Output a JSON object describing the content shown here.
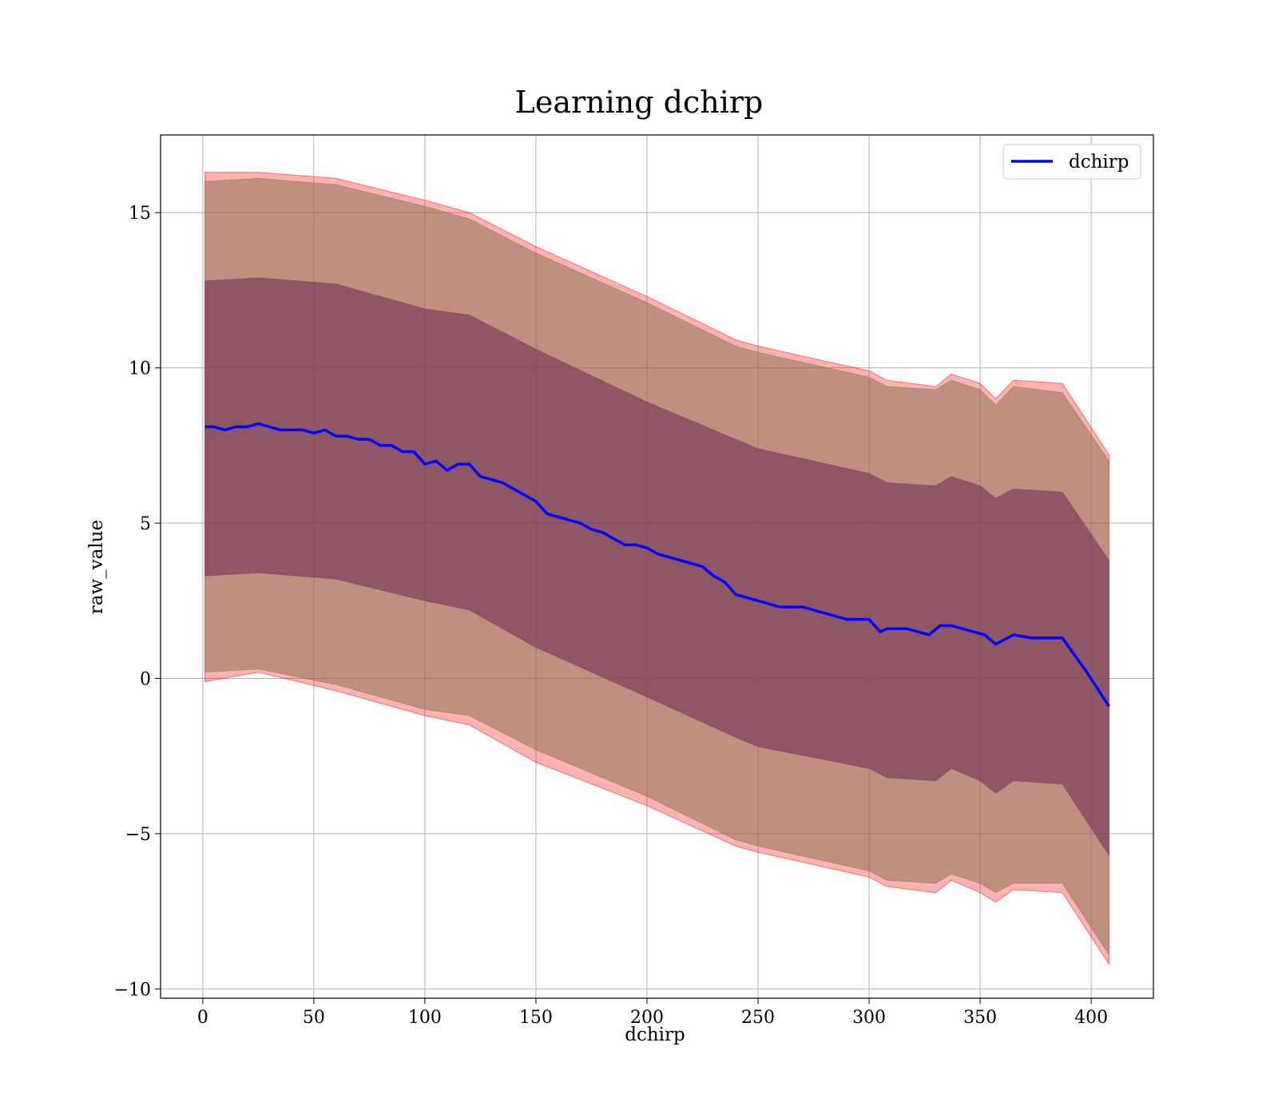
{
  "chart_data": {
    "type": "line",
    "title": "Learning dchirp",
    "xlabel": "dchirp",
    "ylabel": "raw_value",
    "xlim": [
      -19,
      428
    ],
    "ylim": [
      -10.3,
      17.5
    ],
    "xticks": [
      0,
      50,
      100,
      150,
      200,
      250,
      300,
      350,
      400
    ],
    "yticks": [
      -10,
      -5,
      0,
      5,
      10,
      15
    ],
    "xtick_labels": [
      "0",
      "50",
      "100",
      "150",
      "200",
      "250",
      "300",
      "350",
      "400"
    ],
    "ytick_labels": [
      "−10",
      "−5",
      "0",
      "5",
      "10",
      "15"
    ],
    "grid": true,
    "legend_position": "top-right",
    "series": [
      {
        "name": "dchirp",
        "color": "#0000ff",
        "x": [
          1,
          5,
          10,
          15,
          20,
          25,
          30,
          35,
          40,
          45,
          50,
          55,
          60,
          65,
          70,
          75,
          80,
          85,
          90,
          95,
          100,
          105,
          110,
          115,
          120,
          125,
          130,
          135,
          140,
          145,
          150,
          155,
          160,
          165,
          170,
          175,
          180,
          185,
          190,
          195,
          200,
          205,
          210,
          215,
          220,
          225,
          230,
          235,
          240,
          245,
          250,
          255,
          260,
          265,
          270,
          275,
          280,
          285,
          290,
          295,
          300,
          305,
          308,
          312,
          317,
          322,
          327,
          332,
          337,
          342,
          347,
          352,
          357,
          365,
          373,
          380,
          387,
          398,
          408
        ],
        "values": [
          8.1,
          8.1,
          8.0,
          8.1,
          8.1,
          8.2,
          8.1,
          8.0,
          8.0,
          8.0,
          7.9,
          8.0,
          7.8,
          7.8,
          7.7,
          7.7,
          7.5,
          7.5,
          7.3,
          7.3,
          6.9,
          7.0,
          6.7,
          6.9,
          6.9,
          6.5,
          6.4,
          6.3,
          6.1,
          5.9,
          5.7,
          5.3,
          5.2,
          5.1,
          5.0,
          4.8,
          4.7,
          4.5,
          4.3,
          4.3,
          4.2,
          4.0,
          3.9,
          3.8,
          3.7,
          3.6,
          3.3,
          3.1,
          2.7,
          2.6,
          2.5,
          2.4,
          2.3,
          2.3,
          2.3,
          2.2,
          2.1,
          2.0,
          1.9,
          1.9,
          1.9,
          1.5,
          1.6,
          1.6,
          1.6,
          1.5,
          1.4,
          1.7,
          1.7,
          1.6,
          1.5,
          1.4,
          1.1,
          1.4,
          1.3,
          1.3,
          1.3,
          0.2,
          -0.9
        ]
      }
    ],
    "bands": [
      {
        "description_color": "#ff0000",
        "alpha": 0.3,
        "x": [
          1,
          25,
          60,
          100,
          120,
          150,
          200,
          240,
          250,
          300,
          308,
          330,
          337,
          350,
          357,
          365,
          387,
          408
        ],
        "upper": [
          16.3,
          16.3,
          16.1,
          15.4,
          15.0,
          13.9,
          12.3,
          10.9,
          10.7,
          9.9,
          9.6,
          9.4,
          9.8,
          9.5,
          9.0,
          9.6,
          9.5,
          7.2
        ],
        "lower": [
          -0.1,
          0.2,
          -0.4,
          -1.2,
          -1.5,
          -2.7,
          -4.1,
          -5.4,
          -5.6,
          -6.4,
          -6.7,
          -6.9,
          -6.5,
          -6.9,
          -7.2,
          -6.8,
          -6.9,
          -9.2
        ]
      },
      {
        "description_color": "#8b7355",
        "alpha": 0.55,
        "x": [
          1,
          25,
          60,
          100,
          120,
          150,
          200,
          240,
          250,
          300,
          308,
          330,
          337,
          350,
          357,
          365,
          387,
          408
        ],
        "upper": [
          16.0,
          16.1,
          15.9,
          15.2,
          14.8,
          13.7,
          12.1,
          10.7,
          10.5,
          9.7,
          9.4,
          9.3,
          9.6,
          9.3,
          8.8,
          9.4,
          9.2,
          7.0
        ],
        "lower": [
          0.2,
          0.3,
          -0.2,
          -1.0,
          -1.2,
          -2.3,
          -3.8,
          -5.2,
          -5.4,
          -6.2,
          -6.5,
          -6.6,
          -6.3,
          -6.6,
          -6.9,
          -6.6,
          -6.6,
          -8.9
        ]
      },
      {
        "description_color": "#7b3f5a",
        "alpha": 0.7,
        "x": [
          1,
          25,
          60,
          100,
          120,
          150,
          200,
          240,
          250,
          300,
          308,
          330,
          337,
          350,
          357,
          365,
          387,
          408
        ],
        "upper": [
          12.8,
          12.9,
          12.7,
          11.9,
          11.7,
          10.6,
          8.9,
          7.7,
          7.4,
          6.6,
          6.3,
          6.2,
          6.5,
          6.2,
          5.8,
          6.1,
          6.0,
          3.8
        ],
        "lower": [
          3.3,
          3.4,
          3.2,
          2.5,
          2.2,
          1.0,
          -0.6,
          -1.9,
          -2.2,
          -2.9,
          -3.2,
          -3.3,
          -2.9,
          -3.3,
          -3.7,
          -3.3,
          -3.4,
          -5.7
        ]
      }
    ]
  }
}
